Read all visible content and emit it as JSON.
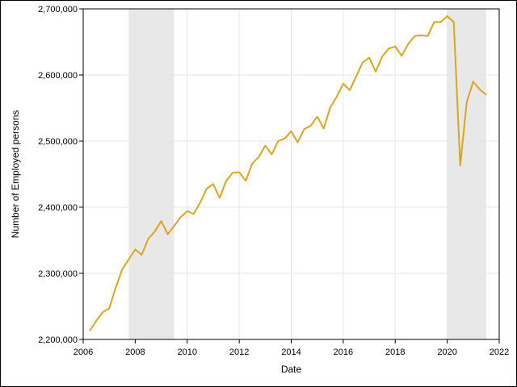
{
  "chart_data": {
    "type": "line",
    "title": "",
    "xlabel": "Date",
    "ylabel": "Number of Employed persons",
    "xlim": [
      2006,
      2022
    ],
    "ylim": [
      2200000,
      2700000
    ],
    "x_ticks": [
      2006,
      2008,
      2010,
      2012,
      2014,
      2016,
      2018,
      2020,
      2022
    ],
    "x_tick_labels": [
      "2006",
      "2008",
      "2010",
      "2012",
      "2014",
      "2016",
      "2018",
      "2020",
      "2022"
    ],
    "y_ticks": [
      2200000,
      2300000,
      2400000,
      2500000,
      2600000,
      2700000
    ],
    "y_tick_labels": [
      "2,200,000",
      "2,300,000",
      "2,400,000",
      "2,500,000",
      "2,600,000",
      "2,700,000"
    ],
    "grid": true,
    "line_color": "#DAA520",
    "shade_color": "#E8E8E8",
    "recession_shading": [
      {
        "start": 2007.75,
        "end": 2009.5
      },
      {
        "start": 2020.0,
        "end": 2021.5
      }
    ],
    "series": [
      {
        "x": [
          2006.25,
          2006.5,
          2006.75,
          2007.0,
          2007.25,
          2007.5,
          2007.75,
          2008.0,
          2008.25,
          2008.5,
          2008.75,
          2009.0,
          2009.25,
          2009.5,
          2009.75,
          2010.0,
          2010.25,
          2010.5,
          2010.75,
          2011.0,
          2011.25,
          2011.5,
          2011.75,
          2012.0,
          2012.25,
          2012.5,
          2012.75,
          2013.0,
          2013.25,
          2013.5,
          2013.75,
          2014.0,
          2014.25,
          2014.5,
          2014.75,
          2015.0,
          2015.25,
          2015.5,
          2015.75,
          2016.0,
          2016.25,
          2016.5,
          2016.75,
          2017.0,
          2017.25,
          2017.5,
          2017.75,
          2018.0,
          2018.25,
          2018.5,
          2018.75,
          2019.0,
          2019.25,
          2019.5,
          2019.75,
          2020.0,
          2020.25,
          2020.5,
          2020.75,
          2021.0,
          2021.25,
          2021.5
        ],
        "y": [
          2213000,
          2228000,
          2241000,
          2247000,
          2278000,
          2306000,
          2321000,
          2336000,
          2328000,
          2352000,
          2363000,
          2379000,
          2359000,
          2372000,
          2385000,
          2394000,
          2390000,
          2407000,
          2428000,
          2435000,
          2414000,
          2440000,
          2452000,
          2453000,
          2440000,
          2466000,
          2476000,
          2493000,
          2480000,
          2500000,
          2504000,
          2515000,
          2498000,
          2518000,
          2523000,
          2537000,
          2519000,
          2551000,
          2567000,
          2587000,
          2577000,
          2598000,
          2619000,
          2626000,
          2605000,
          2628000,
          2640000,
          2643000,
          2629000,
          2647000,
          2659000,
          2660000,
          2659000,
          2680000,
          2680000,
          2689000,
          2680000,
          2463000,
          2559000,
          2590000,
          2578000,
          2570000
        ]
      }
    ]
  }
}
